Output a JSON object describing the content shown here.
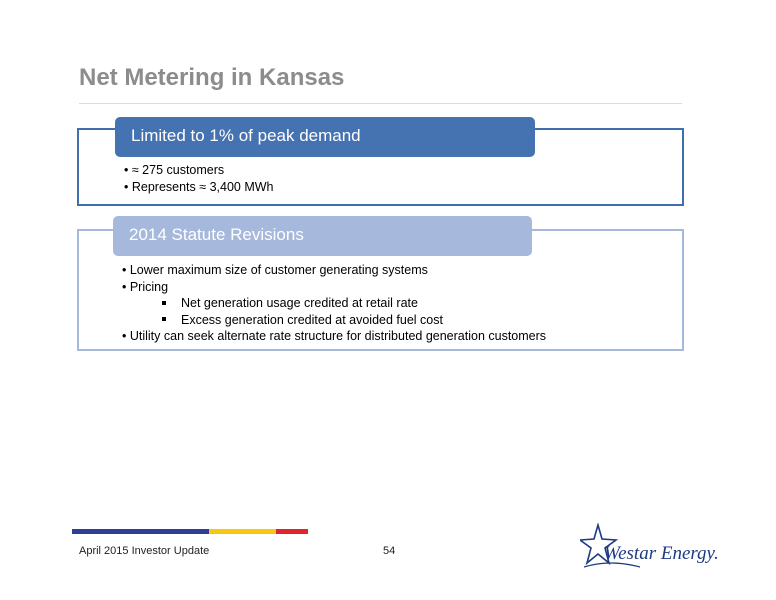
{
  "slide": {
    "title": "Net Metering in Kansas"
  },
  "section1": {
    "heading": "Limited to 1% of peak demand",
    "bullets": [
      "• ≈ 275 customers",
      "• Represents ≈ 3,400 MWh"
    ]
  },
  "section2": {
    "heading": "2014 Statute Revisions",
    "bullets": [
      "• Lower maximum size of customer generating systems",
      "• Pricing"
    ],
    "sub_bullets": [
      "Net generation usage credited at retail rate",
      "Excess generation credited at avoided fuel cost"
    ],
    "final_bullet": "• Utility can seek alternate rate structure for distributed generation customers"
  },
  "footer": {
    "left": "April 2015 Investor Update",
    "page": "54",
    "logo_text": "Westar Energy."
  },
  "colors": {
    "title": "#8c8c8c",
    "tab_dark": "#4572b0",
    "tab_light": "#a6b8db",
    "bar_blue": "#2e3d96",
    "bar_yellow": "#f7c712",
    "bar_red": "#e0262c"
  }
}
